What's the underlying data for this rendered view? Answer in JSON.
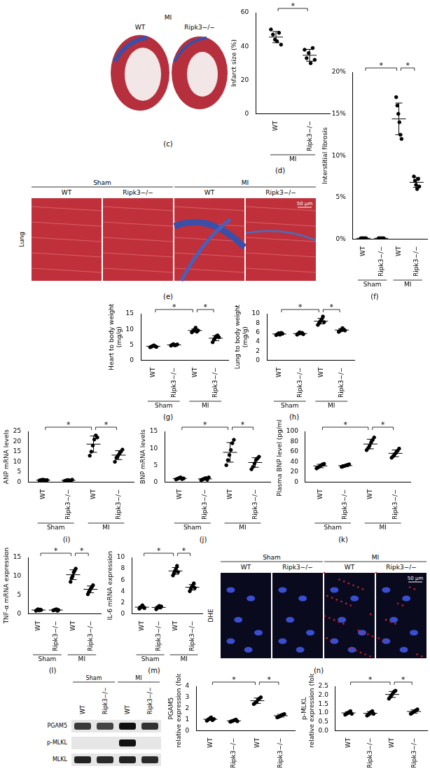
{
  "images": [
    {
      "panel": "(c)",
      "title": "MI",
      "labels": [
        "WT",
        "Ripk3−/−"
      ]
    },
    {
      "panel": "(e)",
      "row_label": "Lung",
      "groups": [
        "Sham",
        "MI"
      ],
      "labels": [
        "WT",
        "Ripk3−/−",
        "WT",
        "Ripk3−/−"
      ],
      "scale_bar": "50 μm"
    },
    {
      "panel": "(n)",
      "row_label": "DHE",
      "groups": [
        "Sham",
        "MI"
      ],
      "labels": [
        "WT",
        "Ripk3−/−",
        "WT",
        "Ripk3−/−"
      ],
      "scale_bar": "50 μm"
    }
  ],
  "blot": {
    "groups": [
      "Sham",
      "MI"
    ],
    "labels": [
      "WT",
      "Ripk3−/−",
      "WT",
      "Ripk3−/−"
    ],
    "bands": [
      "PGAM5",
      "p-MLKL",
      "MLKL"
    ]
  },
  "chart_data": [
    {
      "panel": "(d)",
      "type": "scatter",
      "y_label": "Infarct size (%)",
      "categories": [
        "WT",
        "Ripk3−/−"
      ],
      "groups": [
        {
          "label": "MI",
          "categories": [
            0,
            1
          ]
        }
      ],
      "points": [
        [
          50,
          47,
          44,
          43,
          48,
          41
        ],
        [
          38,
          33,
          36,
          30,
          39,
          32
        ]
      ],
      "mean": [
        45.5,
        34.7
      ],
      "sd": [
        3.3,
        3.5
      ],
      "ylim": [
        0,
        60
      ],
      "yticks": [
        0,
        20,
        40,
        60
      ],
      "significance": [
        {
          "between": [
            0,
            1
          ],
          "label": "*"
        }
      ]
    },
    {
      "panel": "(f)",
      "type": "scatter",
      "y_label": "Interstitial fibrosis",
      "categories": [
        "WT",
        "Ripk3−/−",
        "WT",
        "Ripk3−/−"
      ],
      "groups": [
        {
          "label": "Sham",
          "categories": [
            0,
            1
          ]
        },
        {
          "label": "MI",
          "categories": [
            2,
            3
          ]
        }
      ],
      "points": [
        [
          0.1,
          0.1,
          0.1,
          0.1,
          0.1,
          0.1
        ],
        [
          0.1,
          0.1,
          0.1,
          0.1,
          0.1,
          0.1
        ],
        [
          17,
          16,
          15,
          14,
          12.5,
          12
        ],
        [
          7.5,
          7,
          6.5,
          6,
          7.2,
          6.3
        ]
      ],
      "mean": [
        0.1,
        0.1,
        14.4,
        6.8
      ],
      "sd": [
        0,
        0,
        1.9,
        0.6
      ],
      "ylim": [
        0,
        20
      ],
      "yticks": [
        {
          "value": 0,
          "label": "0%"
        },
        {
          "value": 5,
          "label": "5%"
        },
        {
          "value": 10,
          "label": "10%"
        },
        {
          "value": 15,
          "label": "15%"
        },
        {
          "value": 20,
          "label": "20%"
        }
      ],
      "significance": [
        {
          "between": [
            0,
            2
          ],
          "label": "*"
        },
        {
          "between": [
            2,
            3
          ],
          "label": "*"
        }
      ]
    },
    {
      "panel": "(g)",
      "type": "scatter",
      "y_label": [
        "Heart to body weight",
        "(mg/g)"
      ],
      "categories": [
        "WT",
        "Ripk3−/−",
        "WT",
        "Ripk3−/−"
      ],
      "groups": [
        {
          "label": "Sham",
          "categories": [
            0,
            1
          ]
        },
        {
          "label": "MI",
          "categories": [
            2,
            3
          ]
        }
      ],
      "points": [
        [
          4.2,
          4.4,
          4.6,
          4.8,
          4.5,
          4.3
        ],
        [
          4.7,
          5.0,
          5.2,
          4.8,
          4.9,
          5.1
        ],
        [
          9.0,
          9.4,
          9.8,
          10.5,
          9.2,
          9.6
        ],
        [
          5.8,
          6.6,
          7.2,
          7.8,
          8.0,
          7.4
        ]
      ],
      "mean": [
        4.5,
        4.95,
        9.6,
        7.1
      ],
      "sd": [
        0.2,
        0.2,
        0.5,
        0.8
      ],
      "ylim": [
        0,
        15
      ],
      "yticks": [
        0,
        5,
        10,
        15
      ],
      "significance": [
        {
          "between": [
            0,
            2
          ],
          "label": "*"
        },
        {
          "between": [
            2,
            3
          ],
          "label": "*"
        }
      ]
    },
    {
      "panel": "(h)",
      "type": "scatter",
      "y_label": [
        "Lung to body weight",
        "(mg/g)"
      ],
      "categories": [
        "WT",
        "Ripk3−/−",
        "WT",
        "Ripk3−/−"
      ],
      "groups": [
        {
          "label": "Sham",
          "categories": [
            0,
            1
          ]
        },
        {
          "label": "MI",
          "categories": [
            2,
            3
          ]
        }
      ],
      "points": [
        [
          5.4,
          5.6,
          5.8,
          5.5,
          5.9,
          5.7
        ],
        [
          5.5,
          5.7,
          6.0,
          5.8,
          5.9,
          5.6
        ],
        [
          7.6,
          8.0,
          8.4,
          8.8,
          9.4,
          8.2
        ],
        [
          6.1,
          6.3,
          6.5,
          6.9,
          6.6,
          6.4
        ]
      ],
      "mean": [
        5.65,
        5.75,
        8.4,
        6.5
      ],
      "sd": [
        0.2,
        0.2,
        0.6,
        0.3
      ],
      "ylim": [
        0,
        10
      ],
      "yticks": [
        0,
        2,
        4,
        6,
        8,
        10
      ],
      "significance": [
        {
          "between": [
            0,
            2
          ],
          "label": "*"
        },
        {
          "between": [
            2,
            3
          ],
          "label": "*"
        }
      ]
    },
    {
      "panel": "(i)",
      "type": "scatter",
      "y_label": "ANP mRNA levels",
      "categories": [
        "WT",
        "Ripk3−/−",
        "WT",
        "Ripk3−/−"
      ],
      "groups": [
        {
          "label": "Sham",
          "categories": [
            0,
            1
          ]
        },
        {
          "label": "MI",
          "categories": [
            2,
            3
          ]
        }
      ],
      "points": [
        [
          0.8,
          1.0,
          1.2,
          1.1,
          0.9,
          1.0
        ],
        [
          0.6,
          0.8,
          1.0,
          0.9,
          0.7,
          1.2
        ],
        [
          13,
          15,
          18,
          21,
          23,
          22
        ],
        [
          10,
          12,
          13,
          14,
          15,
          16
        ]
      ],
      "mean": [
        1.0,
        0.87,
        18.7,
        13.3
      ],
      "sd": [
        0.15,
        0.2,
        4,
        2.2
      ],
      "ylim": [
        0,
        25
      ],
      "yticks": [
        0,
        5,
        10,
        15,
        20,
        25
      ],
      "significance": [
        {
          "between": [
            0,
            2
          ],
          "label": "*"
        },
        {
          "between": [
            2,
            3
          ],
          "label": "*"
        }
      ]
    },
    {
      "panel": "(j)",
      "type": "scatter",
      "y_label": "BNP mRNA levels",
      "categories": [
        "WT",
        "Ripk3−/−",
        "WT",
        "Ripk3−/−"
      ],
      "groups": [
        {
          "label": "Sham",
          "categories": [
            0,
            1
          ]
        },
        {
          "label": "MI",
          "categories": [
            2,
            3
          ]
        }
      ],
      "points": [
        [
          0.8,
          1.0,
          1.2,
          1.4,
          0.9,
          1.1
        ],
        [
          0.6,
          0.8,
          1.0,
          1.2,
          0.7,
          1.4
        ],
        [
          5,
          6.5,
          8,
          9.5,
          11.5,
          12.5
        ],
        [
          3.8,
          4.5,
          5.5,
          6.5,
          7,
          7.5
        ]
      ],
      "mean": [
        1.07,
        0.95,
        8.8,
        5.8
      ],
      "sd": [
        0.2,
        0.3,
        2.9,
        1.4
      ],
      "ylim": [
        0,
        15
      ],
      "yticks": [
        0,
        5,
        10,
        15
      ],
      "significance": [
        {
          "between": [
            0,
            2
          ],
          "label": "*"
        },
        {
          "between": [
            2,
            3
          ],
          "label": "*"
        }
      ]
    },
    {
      "panel": "(k)",
      "type": "scatter",
      "y_label": "Plasma BNP level (pg/ml)",
      "categories": [
        "WT",
        "Ripk3−/−",
        "WT",
        "Ripk3−/−"
      ],
      "groups": [
        {
          "label": "Sham",
          "categories": [
            0,
            1
          ]
        },
        {
          "label": "MI",
          "categories": [
            2,
            3
          ]
        }
      ],
      "points": [
        [
          27,
          29,
          31,
          33,
          35,
          36
        ],
        [
          30,
          31,
          32,
          33,
          34,
          35
        ],
        [
          63,
          67,
          72,
          78,
          83,
          88
        ],
        [
          48,
          51,
          55,
          58,
          62,
          66
        ]
      ],
      "mean": [
        31.8,
        32.5,
        75,
        56.7
      ],
      "sd": [
        3.4,
        1.9,
        9.4,
        6.6
      ],
      "ylim": [
        0,
        100
      ],
      "yticks": [
        0,
        20,
        40,
        60,
        80,
        100
      ],
      "significance": [
        {
          "between": [
            0,
            2
          ],
          "label": "*"
        },
        {
          "between": [
            2,
            3
          ],
          "label": "*"
        }
      ]
    },
    {
      "panel": "(l)",
      "type": "scatter",
      "y_label": "TNF-α mRNA expression",
      "categories": [
        "WT",
        "Ripk3−/−",
        "WT",
        "Ripk3−/−"
      ],
      "groups": [
        {
          "label": "Sham",
          "categories": [
            0,
            1
          ]
        },
        {
          "label": "MI",
          "categories": [
            2,
            3
          ]
        }
      ],
      "points": [
        [
          0.8,
          1.0,
          1.2,
          0.9,
          1.1,
          1.0
        ],
        [
          0.9,
          1.0,
          1.1,
          1.2,
          0.8,
          1.0
        ],
        [
          8.5,
          9.5,
          10,
          11,
          11.5,
          12
        ],
        [
          5.2,
          5.8,
          6.3,
          6.8,
          7.2,
          7.6
        ]
      ],
      "mean": [
        1.0,
        1.0,
        10.4,
        6.5
      ],
      "sd": [
        0.15,
        0.15,
        1.3,
        0.9
      ],
      "ylim": [
        0,
        15
      ],
      "yticks": [
        0,
        5,
        10,
        15
      ],
      "significance": [
        {
          "between": [
            0,
            2
          ],
          "label": "*"
        },
        {
          "between": [
            2,
            3
          ],
          "label": "*"
        }
      ]
    },
    {
      "panel": "(m)",
      "type": "scatter",
      "y_label": "IL-6 mRNA expression",
      "categories": [
        "WT",
        "Ripk3−/−",
        "WT",
        "Ripk3−/−"
      ],
      "groups": [
        {
          "label": "Sham",
          "categories": [
            0,
            1
          ]
        },
        {
          "label": "MI",
          "categories": [
            2,
            3
          ]
        }
      ],
      "points": [
        [
          0.9,
          1.1,
          1.3,
          1.5,
          1.2,
          1.0
        ],
        [
          0.8,
          1.0,
          1.2,
          1.4,
          1.1,
          1.3
        ],
        [
          6.8,
          7.2,
          7.6,
          8.0,
          8.5,
          7.4
        ],
        [
          4.0,
          4.4,
          4.8,
          5.0,
          5.4,
          4.6
        ]
      ],
      "mean": [
        1.17,
        1.13,
        7.6,
        4.7
      ],
      "sd": [
        0.2,
        0.2,
        0.6,
        0.5
      ],
      "ylim": [
        0,
        10
      ],
      "yticks": [
        0,
        2,
        4,
        6,
        8,
        10
      ],
      "significance": [
        {
          "between": [
            0,
            2
          ],
          "label": "*"
        },
        {
          "between": [
            2,
            3
          ],
          "label": "*"
        }
      ]
    },
    {
      "type": "scatter",
      "y_label": [
        "PGAM5",
        "relative expression (fold)"
      ],
      "categories": [
        "WT",
        "Ripk3−/−",
        "WT",
        "Ripk3−/−"
      ],
      "points": [
        [
          0.9,
          1.0,
          1.1,
          1.2,
          0.95,
          1.05
        ],
        [
          0.8,
          0.85,
          0.9,
          0.95,
          1.0,
          0.85
        ],
        [
          2.4,
          2.5,
          2.6,
          2.8,
          2.9,
          3.0
        ],
        [
          1.2,
          1.25,
          1.3,
          1.4,
          1.45,
          1.5
        ]
      ],
      "mean": [
        1.03,
        0.89,
        2.7,
        1.35
      ],
      "sd": [
        0.1,
        0.07,
        0.24,
        0.12
      ],
      "ylim": [
        0,
        4
      ],
      "yticks": [
        0,
        1,
        2,
        3,
        4
      ],
      "significance": [
        {
          "between": [
            0,
            2
          ],
          "label": "*"
        },
        {
          "between": [
            2,
            3
          ],
          "label": "*"
        }
      ]
    },
    {
      "type": "scatter",
      "y_label": [
        "p-MLKL",
        "relative expression (fold)"
      ],
      "categories": [
        "WT",
        "Ripk3−/−",
        "WT",
        "Ripk3−/−"
      ],
      "points": [
        [
          0.9,
          0.95,
          1.0,
          1.05,
          1.1,
          0.95
        ],
        [
          0.85,
          0.9,
          1.0,
          1.05,
          1.1,
          0.95
        ],
        [
          1.8,
          1.9,
          2.0,
          2.1,
          2.2,
          2.25
        ],
        [
          0.95,
          1.0,
          1.05,
          1.1,
          1.15,
          1.2
        ]
      ],
      "mean": [
        1.0,
        0.98,
        2.04,
        1.08
      ],
      "sd": [
        0.07,
        0.09,
        0.17,
        0.09
      ],
      "ylim": [
        0,
        2.5
      ],
      "yticks": [
        {
          "value": 0,
          "label": "0.0"
        },
        {
          "value": 0.5,
          "label": "0.5"
        },
        {
          "value": 1,
          "label": "1.0"
        },
        {
          "value": 1.5,
          "label": "1.5"
        },
        {
          "value": 2,
          "label": "2.0"
        },
        {
          "value": 2.5,
          "label": "2.5"
        }
      ],
      "significance": [
        {
          "between": [
            0,
            2
          ],
          "label": "*"
        },
        {
          "between": [
            2,
            3
          ],
          "label": "*"
        }
      ]
    }
  ]
}
